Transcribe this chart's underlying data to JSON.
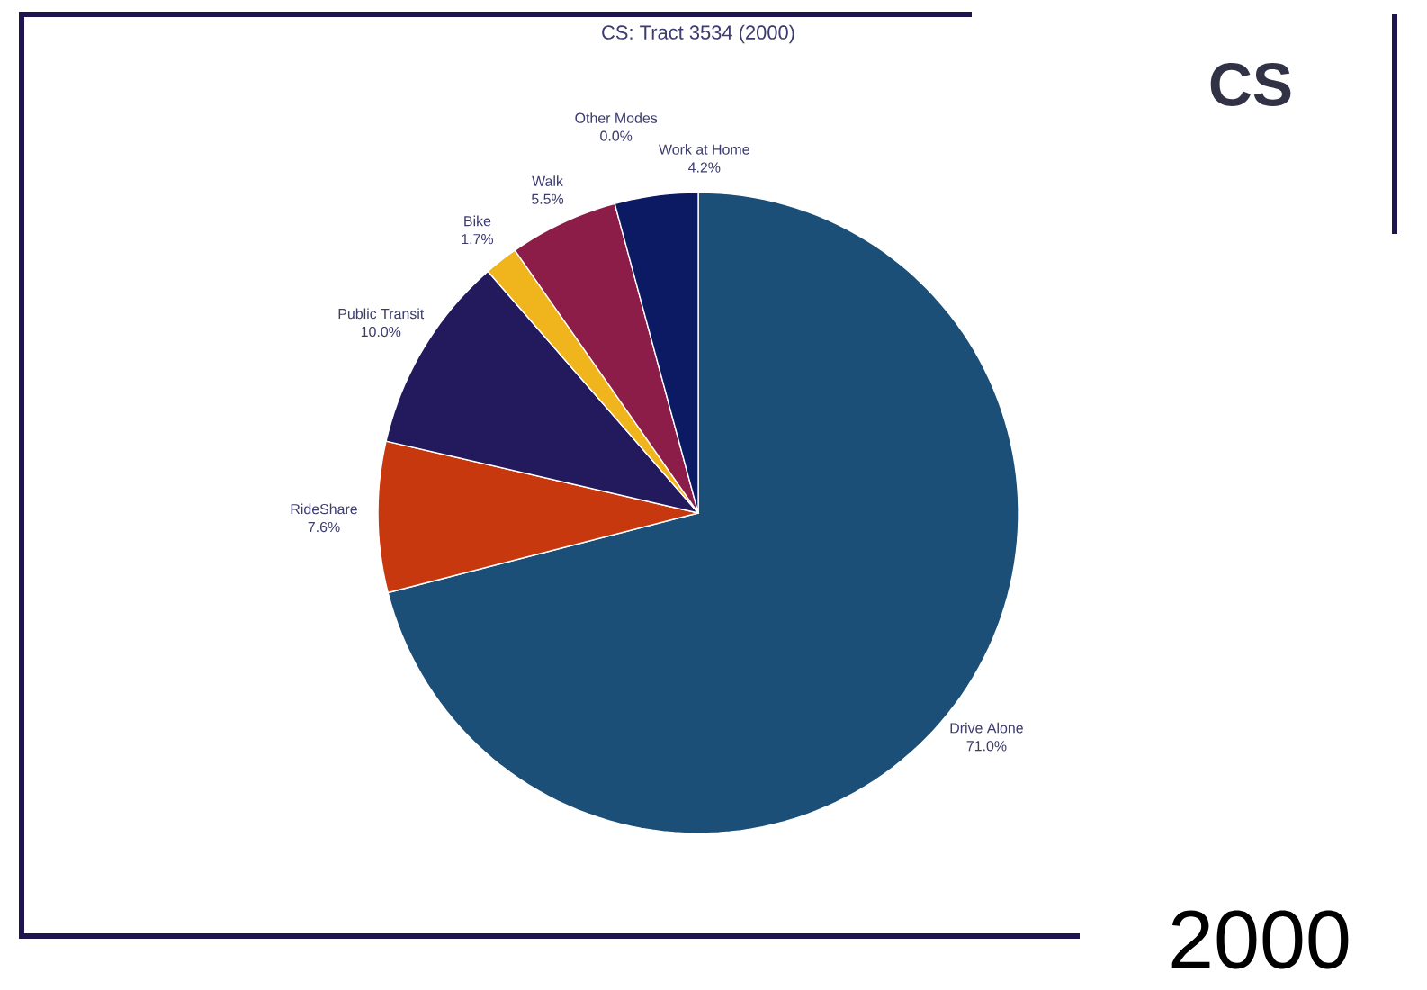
{
  "chart_data": {
    "type": "pie",
    "title": "CS: Tract 3534 (2000)",
    "categories": [
      "Drive Alone",
      "RideShare",
      "Public Transit",
      "Bike",
      "Walk",
      "Other Modes",
      "Work at Home"
    ],
    "values": [
      71.0,
      7.6,
      10.0,
      1.7,
      5.5,
      0.0,
      4.2
    ],
    "value_labels": [
      "71.0%",
      "7.6%",
      "10.0%",
      "1.7%",
      "5.5%",
      "0.0%",
      "4.2%"
    ],
    "colors": [
      "#1c4f78",
      "#c8380e",
      "#221a5c",
      "#f0b41c",
      "#8c1c48",
      "#6a6a9a",
      "#0c1a64"
    ],
    "annotations": [
      "CS",
      "2000"
    ]
  }
}
